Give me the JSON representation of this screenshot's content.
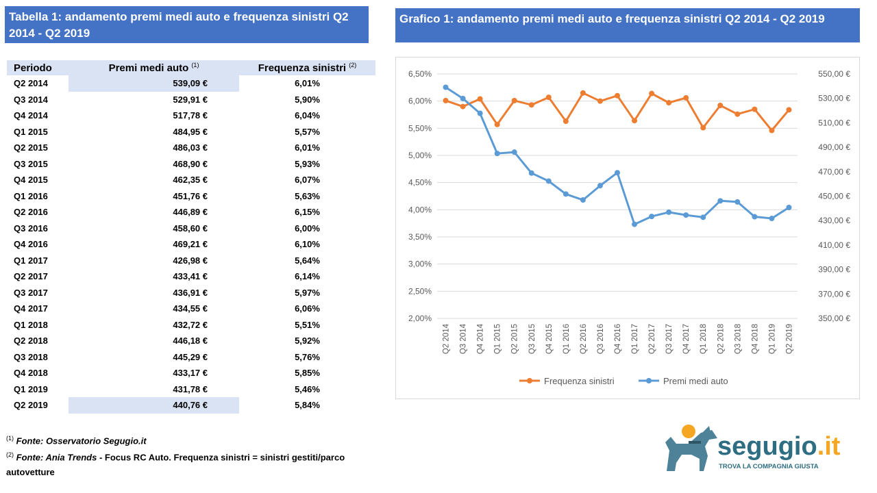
{
  "table_title": "Tabella 1: andamento premi medi auto e frequenza sinistri Q2 2014 - Q2 2019",
  "chart_title": "Grafico 1: andamento premi medi auto e frequenza sinistri Q2 2014 - Q2 2019",
  "table": {
    "headers": {
      "period": "Periodo",
      "premium": "Premi medi auto",
      "premium_sup": "(1)",
      "frequency": "Frequenza sinistri",
      "frequency_sup": "(2)"
    },
    "rows": [
      {
        "period": "Q2 2014",
        "premium": "539,09 €",
        "frequency": "6,01%"
      },
      {
        "period": "Q3 2014",
        "premium": "529,91 €",
        "frequency": "5,90%"
      },
      {
        "period": "Q4 2014",
        "premium": "517,78 €",
        "frequency": "6,04%"
      },
      {
        "period": "Q1 2015",
        "premium": "484,95 €",
        "frequency": "5,57%"
      },
      {
        "period": "Q2 2015",
        "premium": "486,03 €",
        "frequency": "6,01%"
      },
      {
        "period": "Q3 2015",
        "premium": "468,90 €",
        "frequency": "5,93%"
      },
      {
        "period": "Q4 2015",
        "premium": "462,35 €",
        "frequency": "6,07%"
      },
      {
        "period": "Q1 2016",
        "premium": "451,76 €",
        "frequency": "5,63%"
      },
      {
        "period": "Q2 2016",
        "premium": "446,89 €",
        "frequency": "6,15%"
      },
      {
        "period": "Q3 2016",
        "premium": "458,60 €",
        "frequency": "6,00%"
      },
      {
        "period": "Q4 2016",
        "premium": "469,21 €",
        "frequency": "6,10%"
      },
      {
        "period": "Q1 2017",
        "premium": "426,98 €",
        "frequency": "5,64%"
      },
      {
        "period": "Q2 2017",
        "premium": "433,41 €",
        "frequency": "6,14%"
      },
      {
        "period": "Q3 2017",
        "premium": "436,91 €",
        "frequency": "5,97%"
      },
      {
        "period": "Q4 2017",
        "premium": "434,55 €",
        "frequency": "6,06%"
      },
      {
        "period": "Q1 2018",
        "premium": "432,72 €",
        "frequency": "5,51%"
      },
      {
        "period": "Q2 2018",
        "premium": "446,18 €",
        "frequency": "5,92%"
      },
      {
        "period": "Q3 2018",
        "premium": "445,29 €",
        "frequency": "5,76%"
      },
      {
        "period": "Q4 2018",
        "premium": "433,17 €",
        "frequency": "5,85%"
      },
      {
        "period": "Q1 2019",
        "premium": "431,78 €",
        "frequency": "5,46%"
      },
      {
        "period": "Q2 2019",
        "premium": "440,76 €",
        "frequency": "5,84%"
      }
    ]
  },
  "notes": {
    "n1_sup": "(1)",
    "n1_source": "Fonte: Osservatorio Segugio.it",
    "n2_sup": "(2)",
    "n2_source": "Fonte: Ania Trends",
    "n2_text": " - Focus RC Auto. Frequenza sinistri = sinistri gestiti/parco autovetture"
  },
  "logo": {
    "brand_main": "segugio",
    "brand_dot": ".it",
    "tagline": "TROVA LA COMPAGNIA GIUSTA"
  },
  "chart_data": {
    "type": "line",
    "title": "",
    "categories": [
      "Q2 2014",
      "Q3 2014",
      "Q4 2014",
      "Q1 2015",
      "Q2 2015",
      "Q3 2015",
      "Q4 2015",
      "Q1 2016",
      "Q2 2016",
      "Q3 2016",
      "Q4 2016",
      "Q1 2017",
      "Q2 2017",
      "Q3 2017",
      "Q4 2017",
      "Q1 2018",
      "Q2 2018",
      "Q3 2018",
      "Q4 2018",
      "Q1 2019",
      "Q2 2019"
    ],
    "series": [
      {
        "name": "Frequenza sinistri",
        "axis": "left",
        "color": "#ed7d31",
        "values": [
          6.01,
          5.9,
          6.04,
          5.57,
          6.01,
          5.93,
          6.07,
          5.63,
          6.15,
          6.0,
          6.1,
          5.64,
          6.14,
          5.97,
          6.06,
          5.51,
          5.92,
          5.76,
          5.85,
          5.46,
          5.84
        ]
      },
      {
        "name": "Premi medi auto",
        "axis": "right",
        "color": "#5b9bd5",
        "values": [
          539.09,
          529.91,
          517.78,
          484.95,
          486.03,
          468.9,
          462.35,
          451.76,
          446.89,
          458.6,
          469.21,
          426.98,
          433.41,
          436.91,
          434.55,
          432.72,
          446.18,
          445.29,
          433.17,
          431.78,
          440.76
        ]
      }
    ],
    "left_axis": {
      "min": 2.0,
      "max": 6.5,
      "step": 0.5,
      "ticks": [
        "2,00%",
        "2,50%",
        "3,00%",
        "3,50%",
        "4,00%",
        "4,50%",
        "5,00%",
        "5,50%",
        "6,00%",
        "6,50%"
      ]
    },
    "right_axis": {
      "min": 350,
      "max": 550,
      "step": 20,
      "ticks": [
        "350,00 €",
        "370,00 €",
        "390,00 €",
        "410,00 €",
        "430,00 €",
        "450,00 €",
        "470,00 €",
        "490,00 €",
        "510,00 €",
        "530,00 €",
        "550,00 €"
      ]
    },
    "grid": true,
    "legend": "bottom"
  }
}
